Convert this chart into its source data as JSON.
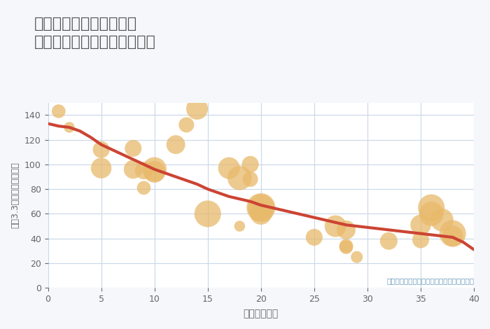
{
  "title": "奈良県奈良市三松ヶ丘の\n築年数別中古マンション価格",
  "xlabel": "築年数（年）",
  "ylabel": "坪（3.3㎡）単価（万円）",
  "annotation": "円の大きさは、取引のあった物件面積を示す",
  "background_color": "#f5f7fa",
  "plot_bg_color": "#ffffff",
  "grid_color": "#c8d8e8",
  "title_color": "#555555",
  "axis_color": "#666666",
  "annotation_color": "#6699bb",
  "bubble_color": "#e8b96a",
  "bubble_alpha": 0.75,
  "line_color": "#cc4433",
  "line_width": 3.0,
  "xlim": [
    0,
    40
  ],
  "ylim": [
    0,
    150
  ],
  "xticks": [
    0,
    5,
    10,
    15,
    20,
    25,
    30,
    35,
    40
  ],
  "yticks": [
    0,
    20,
    40,
    60,
    80,
    100,
    120,
    140
  ],
  "scatter_x": [
    1,
    2,
    5,
    5,
    8,
    8,
    9,
    9,
    10,
    10,
    12,
    13,
    14,
    15,
    17,
    18,
    18,
    19,
    19,
    20,
    20,
    20,
    25,
    27,
    28,
    28,
    28,
    29,
    32,
    35,
    35,
    36,
    36,
    37,
    38,
    38
  ],
  "scatter_y": [
    143,
    130,
    112,
    97,
    113,
    96,
    81,
    95,
    94,
    96,
    116,
    132,
    145,
    60,
    97,
    89,
    50,
    100,
    88,
    65,
    65,
    60,
    41,
    50,
    47,
    34,
    33,
    25,
    38,
    51,
    39,
    65,
    60,
    55,
    44,
    42
  ],
  "scatter_s": [
    80,
    50,
    120,
    180,
    120,
    150,
    80,
    130,
    200,
    250,
    150,
    100,
    200,
    300,
    200,
    250,
    50,
    120,
    100,
    300,
    350,
    200,
    120,
    200,
    150,
    80,
    80,
    60,
    130,
    180,
    120,
    300,
    250,
    220,
    300,
    180
  ],
  "trend_x": [
    0,
    1,
    2,
    3,
    4,
    5,
    6,
    7,
    8,
    9,
    10,
    11,
    12,
    13,
    14,
    15,
    16,
    17,
    18,
    19,
    20,
    21,
    22,
    23,
    24,
    25,
    26,
    27,
    28,
    29,
    30,
    31,
    32,
    33,
    34,
    35,
    36,
    37,
    38,
    39,
    40
  ],
  "trend_y": [
    133,
    131,
    130,
    127,
    122,
    116,
    112,
    108,
    104,
    100,
    96,
    93,
    90,
    87,
    84,
    80,
    77,
    74,
    72,
    70,
    67,
    65,
    63,
    61,
    59,
    57,
    55,
    53,
    51,
    50,
    49,
    48,
    47,
    46,
    45,
    44,
    43,
    42,
    41,
    37,
    31
  ]
}
